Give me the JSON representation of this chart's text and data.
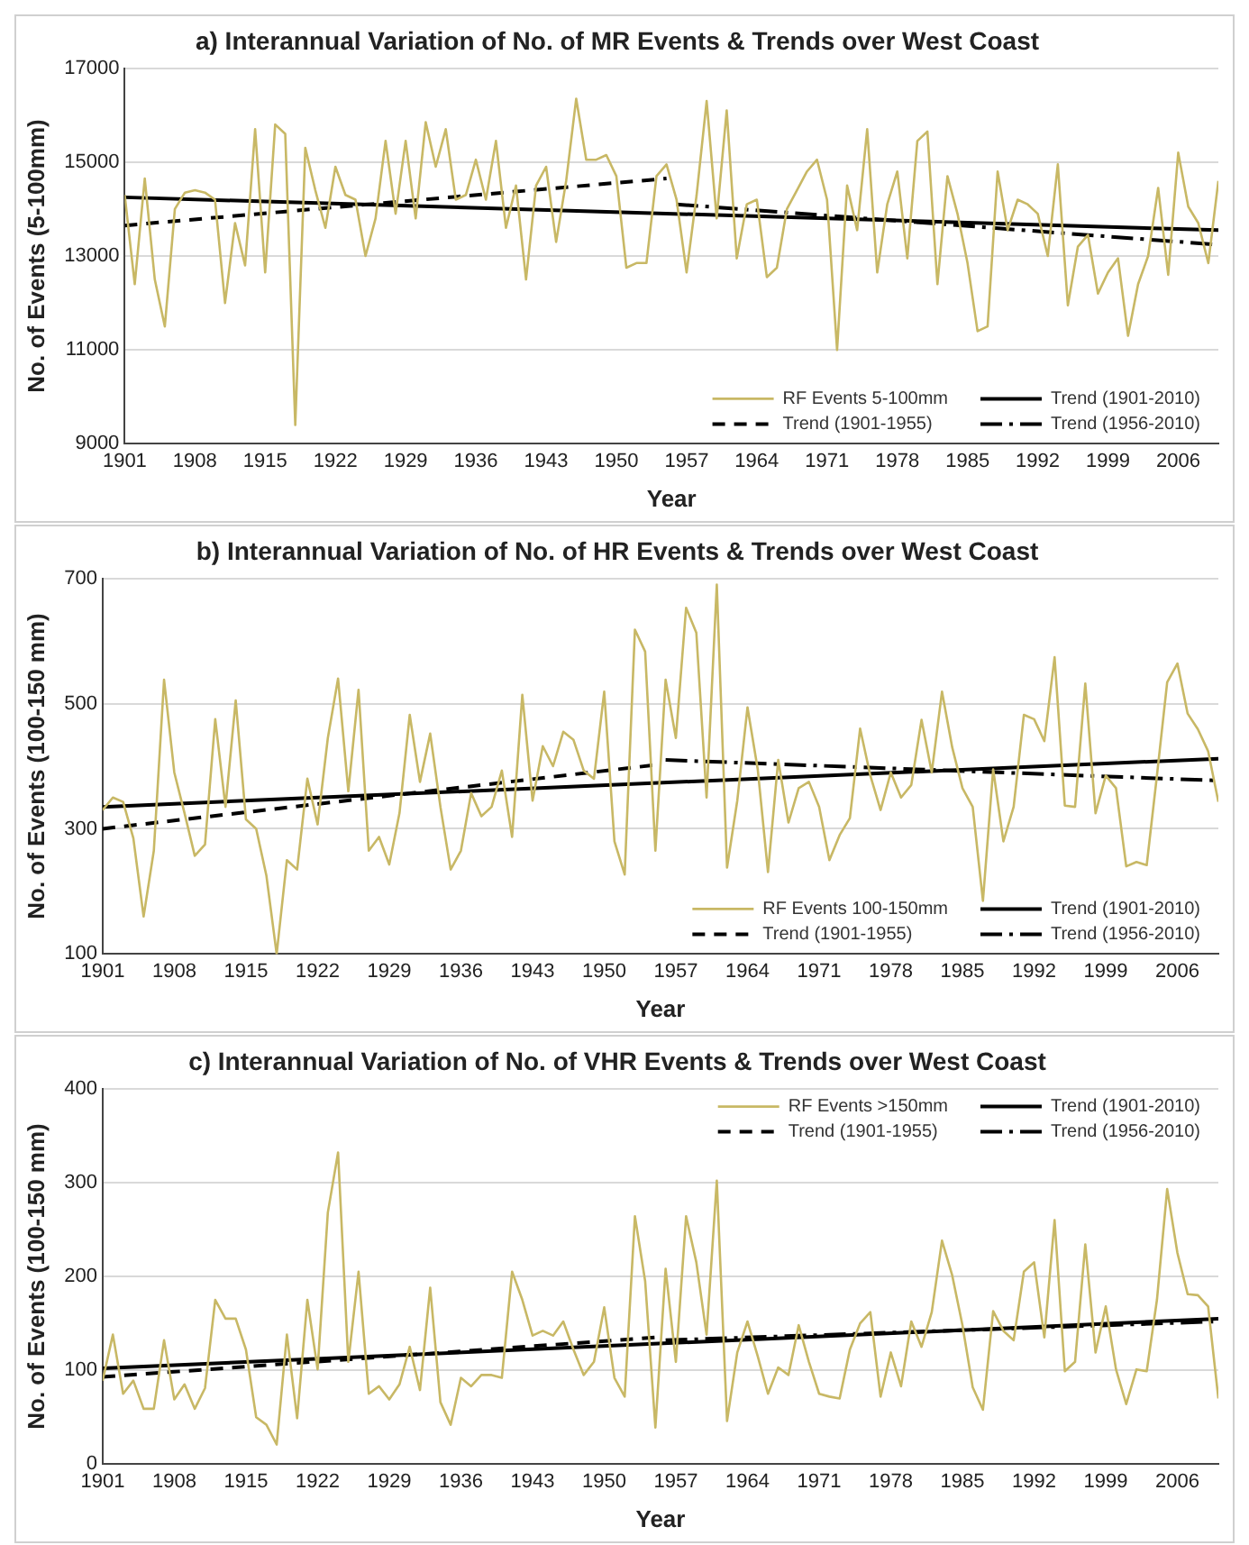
{
  "chart_data": [
    {
      "type": "line",
      "title": "a) Interannual Variation of No. of MR Events & Trends over West Coast",
      "xlabel": "Year",
      "ylabel": "No. of Events (5-100mm)",
      "xlim": [
        1901,
        2010
      ],
      "xticks": [
        1901,
        1908,
        1915,
        1922,
        1929,
        1936,
        1943,
        1950,
        1957,
        1964,
        1971,
        1978,
        1985,
        1992,
        1999,
        2006
      ],
      "ylim": [
        9000,
        17000
      ],
      "yticks": [
        9000,
        11000,
        13000,
        15000,
        17000
      ],
      "grid": "y",
      "legend": "bottom right",
      "marker": "none",
      "x": [
        1901,
        1902,
        1903,
        1904,
        1905,
        1906,
        1907,
        1908,
        1909,
        1910,
        1911,
        1912,
        1913,
        1914,
        1915,
        1916,
        1917,
        1918,
        1919,
        1920,
        1921,
        1922,
        1923,
        1924,
        1925,
        1926,
        1927,
        1928,
        1929,
        1930,
        1931,
        1932,
        1933,
        1934,
        1935,
        1936,
        1937,
        1938,
        1939,
        1940,
        1941,
        1942,
        1943,
        1944,
        1945,
        1946,
        1947,
        1948,
        1949,
        1950,
        1951,
        1952,
        1953,
        1954,
        1955,
        1956,
        1957,
        1958,
        1959,
        1960,
        1961,
        1962,
        1963,
        1964,
        1965,
        1966,
        1967,
        1968,
        1969,
        1970,
        1971,
        1972,
        1973,
        1974,
        1975,
        1976,
        1977,
        1978,
        1979,
        1980,
        1981,
        1982,
        1983,
        1984,
        1985,
        1986,
        1987,
        1988,
        1989,
        1990,
        1991,
        1992,
        1993,
        1994,
        1995,
        1996,
        1997,
        1998,
        1999,
        2000,
        2001,
        2002,
        2003,
        2004,
        2005,
        2006,
        2007,
        2008,
        2009,
        2010
      ],
      "series": [
        {
          "name": "RF Events 5-100mm",
          "color": "#c8b865",
          "line_style": "solid",
          "values": [
            14300,
            12400,
            14650,
            12500,
            11500,
            14000,
            14350,
            14400,
            14350,
            14200,
            12000,
            13700,
            12800,
            15700,
            12650,
            15800,
            15600,
            9400,
            15300,
            14400,
            13600,
            14900,
            14300,
            14200,
            13000,
            13800,
            15450,
            13900,
            15450,
            13800,
            15850,
            14900,
            15700,
            14200,
            14300,
            15050,
            14200,
            15450,
            13600,
            14500,
            12500,
            14500,
            14900,
            13300,
            14600,
            16350,
            15050,
            15050,
            15150,
            14700,
            12750,
            12850,
            12850,
            14700,
            14950,
            14200,
            12650,
            14300,
            16300,
            13800,
            16100,
            12950,
            14100,
            14200,
            12550,
            12750,
            14000,
            14400,
            14800,
            15050,
            14200,
            11000,
            14500,
            13550,
            15700,
            12650,
            14100,
            14800,
            12950,
            15450,
            15650,
            12400,
            14700,
            13900,
            12850,
            11400,
            11500,
            14800,
            13550,
            14200,
            14100,
            13900,
            13000,
            14950,
            11950,
            13200,
            13450,
            12200,
            12650,
            12950,
            11300,
            12400,
            13000,
            14450,
            12600,
            15200,
            14050,
            13700,
            12850,
            14600
          ]
        },
        {
          "name": "Trend (1901-2010)",
          "color": "#000000",
          "line_style": "solid",
          "x": [
            1901,
            2010
          ],
          "values": [
            14250,
            13550
          ]
        },
        {
          "name": "Trend (1901-1955)",
          "color": "#000000",
          "line_style": "dashed",
          "x": [
            1901,
            1955
          ],
          "values": [
            13650,
            14650
          ]
        },
        {
          "name": "Trend (1956-2010)",
          "color": "#000000",
          "line_style": "dashdot",
          "x": [
            1956,
            2010
          ],
          "values": [
            14100,
            13240
          ]
        }
      ]
    },
    {
      "type": "line",
      "title": "b) Interannual Variation of No. of HR Events & Trends over West Coast",
      "xlabel": "Year",
      "ylabel": "No. of Events (100-150 mm)",
      "xlim": [
        1901,
        2010
      ],
      "xticks": [
        1901,
        1908,
        1915,
        1922,
        1929,
        1936,
        1943,
        1950,
        1957,
        1964,
        1971,
        1978,
        1985,
        1992,
        1999,
        2006
      ],
      "ylim": [
        100,
        700
      ],
      "yticks": [
        100,
        300,
        500,
        700
      ],
      "grid": "y",
      "legend": "bottom right",
      "marker": "none",
      "x": [
        1901,
        1902,
        1903,
        1904,
        1905,
        1906,
        1907,
        1908,
        1909,
        1910,
        1911,
        1912,
        1913,
        1914,
        1915,
        1916,
        1917,
        1918,
        1919,
        1920,
        1921,
        1922,
        1923,
        1924,
        1925,
        1926,
        1927,
        1928,
        1929,
        1930,
        1931,
        1932,
        1933,
        1934,
        1935,
        1936,
        1937,
        1938,
        1939,
        1940,
        1941,
        1942,
        1943,
        1944,
        1945,
        1946,
        1947,
        1948,
        1949,
        1950,
        1951,
        1952,
        1953,
        1954,
        1955,
        1956,
        1957,
        1958,
        1959,
        1960,
        1961,
        1962,
        1963,
        1964,
        1965,
        1966,
        1967,
        1968,
        1969,
        1970,
        1971,
        1972,
        1973,
        1974,
        1975,
        1976,
        1977,
        1978,
        1979,
        1980,
        1981,
        1982,
        1983,
        1984,
        1985,
        1986,
        1987,
        1988,
        1989,
        1990,
        1991,
        1992,
        1993,
        1994,
        1995,
        1996,
        1997,
        1998,
        1999,
        2000,
        2001,
        2002,
        2003,
        2004,
        2005,
        2006,
        2007,
        2008,
        2009,
        2010
      ],
      "series": [
        {
          "name": "RF Events 100-150mm",
          "color": "#c8b865",
          "line_style": "solid",
          "values": [
            330,
            350,
            343,
            285,
            160,
            265,
            538,
            390,
            325,
            257,
            275,
            475,
            335,
            505,
            315,
            300,
            225,
            100,
            250,
            235,
            380,
            307,
            445,
            540,
            360,
            522,
            265,
            287,
            243,
            325,
            482,
            375,
            452,
            335,
            235,
            265,
            357,
            320,
            335,
            393,
            287,
            514,
            345,
            432,
            400,
            455,
            442,
            393,
            380,
            519,
            280,
            227,
            618,
            583,
            265,
            538,
            445,
            653,
            613,
            350,
            690,
            238,
            345,
            494,
            395,
            231,
            410,
            310,
            365,
            375,
            335,
            250,
            290,
            317,
            460,
            385,
            330,
            390,
            350,
            370,
            474,
            390,
            519,
            430,
            365,
            335,
            185,
            395,
            280,
            335,
            482,
            475,
            440,
            574,
            337,
            335,
            532,
            325,
            385,
            365,
            240,
            247,
            242,
            385,
            534,
            564,
            484,
            459,
            424,
            343
          ]
        },
        {
          "name": "Trend (1901-2010)",
          "color": "#000000",
          "line_style": "solid",
          "x": [
            1901,
            2010
          ],
          "values": [
            335,
            412
          ]
        },
        {
          "name": "Trend (1901-1955)",
          "color": "#000000",
          "line_style": "dashed",
          "x": [
            1901,
            1955
          ],
          "values": [
            300,
            402
          ]
        },
        {
          "name": "Trend (1956-2010)",
          "color": "#000000",
          "line_style": "dashdot",
          "x": [
            1956,
            2010
          ],
          "values": [
            410,
            377
          ]
        }
      ]
    },
    {
      "type": "line",
      "title": "c) Interannual Variation of No. of VHR Events & Trends over West Coast",
      "xlabel": "Year",
      "ylabel": "No. of Events (100-150 mm)",
      "xlim": [
        1901,
        2010
      ],
      "xticks": [
        1901,
        1908,
        1915,
        1922,
        1929,
        1936,
        1943,
        1950,
        1957,
        1964,
        1971,
        1978,
        1985,
        1992,
        1999,
        2006
      ],
      "ylim": [
        0,
        400
      ],
      "yticks": [
        0,
        100,
        200,
        300,
        400
      ],
      "grid": "y",
      "legend": "top right",
      "marker": "none",
      "x": [
        1901,
        1902,
        1903,
        1904,
        1905,
        1906,
        1907,
        1908,
        1909,
        1910,
        1911,
        1912,
        1913,
        1914,
        1915,
        1916,
        1917,
        1918,
        1919,
        1920,
        1921,
        1922,
        1923,
        1924,
        1925,
        1926,
        1927,
        1928,
        1929,
        1930,
        1931,
        1932,
        1933,
        1934,
        1935,
        1936,
        1937,
        1938,
        1939,
        1940,
        1941,
        1942,
        1943,
        1944,
        1945,
        1946,
        1947,
        1948,
        1949,
        1950,
        1951,
        1952,
        1953,
        1954,
        1955,
        1956,
        1957,
        1958,
        1959,
        1960,
        1961,
        1962,
        1963,
        1964,
        1965,
        1966,
        1967,
        1968,
        1969,
        1970,
        1971,
        1972,
        1973,
        1974,
        1975,
        1976,
        1977,
        1978,
        1979,
        1980,
        1981,
        1982,
        1983,
        1984,
        1985,
        1986,
        1987,
        1988,
        1989,
        1990,
        1991,
        1992,
        1993,
        1994,
        1995,
        1996,
        1997,
        1998,
        1999,
        2000,
        2001,
        2002,
        2003,
        2004,
        2005,
        2006,
        2007,
        2008,
        2009,
        2010
      ],
      "series": [
        {
          "name": "RF Events >150mm",
          "color": "#c8b865",
          "line_style": "solid",
          "values": [
            89,
            138,
            75,
            89,
            59,
            59,
            132,
            69,
            85,
            59,
            81,
            175,
            155,
            155,
            122,
            50,
            42,
            21,
            138,
            49,
            175,
            101,
            268,
            332,
            109,
            205,
            75,
            83,
            69,
            85,
            125,
            79,
            188,
            66,
            42,
            92,
            83,
            95,
            95,
            92,
            205,
            175,
            137,
            142,
            137,
            152,
            122,
            95,
            109,
            167,
            92,
            72,
            264,
            195,
            39,
            208,
            109,
            264,
            215,
            138,
            302,
            46,
            119,
            152,
            115,
            75,
            103,
            95,
            148,
            109,
            75,
            72,
            70,
            122,
            150,
            162,
            72,
            119,
            83,
            152,
            125,
            162,
            238,
            201,
            148,
            82,
            58,
            163,
            142,
            132,
            205,
            215,
            135,
            260,
            99,
            109,
            234,
            119,
            168,
            101,
            64,
            101,
            99,
            175,
            293,
            225,
            181,
            180,
            168,
            70
          ]
        },
        {
          "name": "Trend (1901-2010)",
          "color": "#000000",
          "line_style": "solid",
          "x": [
            1901,
            2010
          ],
          "values": [
            102,
            155
          ]
        },
        {
          "name": "Trend (1901-1955)",
          "color": "#000000",
          "line_style": "dashed",
          "x": [
            1901,
            1955
          ],
          "values": [
            93,
            135
          ]
        },
        {
          "name": "Trend (1956-2010)",
          "color": "#000000",
          "line_style": "dashdot",
          "x": [
            1956,
            2010
          ],
          "values": [
            132,
            152
          ]
        }
      ]
    }
  ]
}
